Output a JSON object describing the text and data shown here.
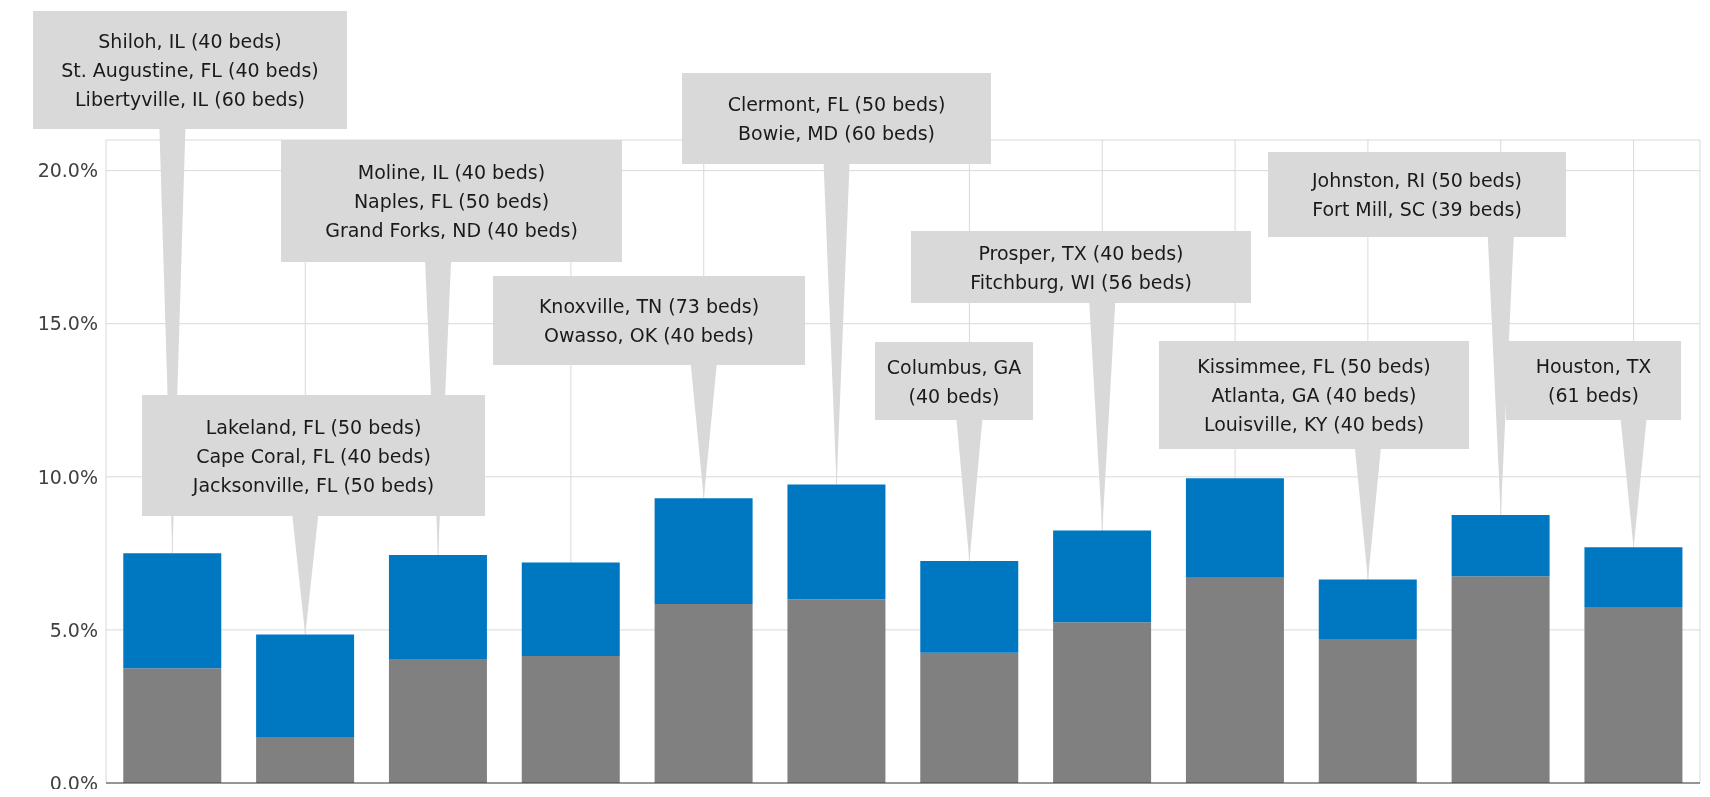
{
  "chart_data": {
    "type": "bar",
    "stacked": true,
    "categories": [
      null,
      null,
      null,
      null,
      null,
      null,
      null,
      null,
      null,
      null,
      null,
      null
    ],
    "series": [
      {
        "color": "#808080",
        "values": [
          3.75,
          1.5,
          4.05,
          4.15,
          5.85,
          6.0,
          4.25,
          5.25,
          6.7,
          4.7,
          6.75,
          5.75
        ]
      },
      {
        "color": "#0078c1",
        "values": [
          3.75,
          3.35,
          3.4,
          3.05,
          3.45,
          3.75,
          3.0,
          3.0,
          3.25,
          1.95,
          2.0,
          1.95
        ]
      }
    ],
    "ylim": [
      0,
      21
    ],
    "yticks": [
      {
        "value": 0,
        "label": "0.0%"
      },
      {
        "value": 5,
        "label": "5.0%"
      },
      {
        "value": 10,
        "label": "10.0%"
      },
      {
        "value": 15,
        "label": "15.0%"
      },
      {
        "value": 20,
        "label": "20.0%"
      }
    ],
    "grid": true,
    "annotations": [
      "Shiloh, IL (40 beds)\nSt. Augustine, FL (40 beds)\nLibertyville, IL (60 beds)",
      "Lakeland, FL (50 beds)\nCape Coral, FL (40 beds)\nJacksonville, FL (50 beds)",
      "Moline, IL (40 beds)\nNaples, FL (50 beds)\nGrand Forks, ND (40 beds)",
      "Knoxville, TN (73 beds)\nOwasso, OK (40 beds)",
      "Clermont, FL (50 beds)\nBowie, MD (60 beds)",
      "Columbus, GA\n(40 beds)",
      "Prosper, TX (40 beds)\nFitchburg, WI (56 beds)",
      "Kissimmee, FL (50 beds)\nAtlanta, GA (40 beds)\nLouisville, KY (40 beds)",
      "Johnston, RI (50 beds)\nFort Mill, SC (39 beds)",
      "Houston, TX\n(61 beds)"
    ]
  }
}
